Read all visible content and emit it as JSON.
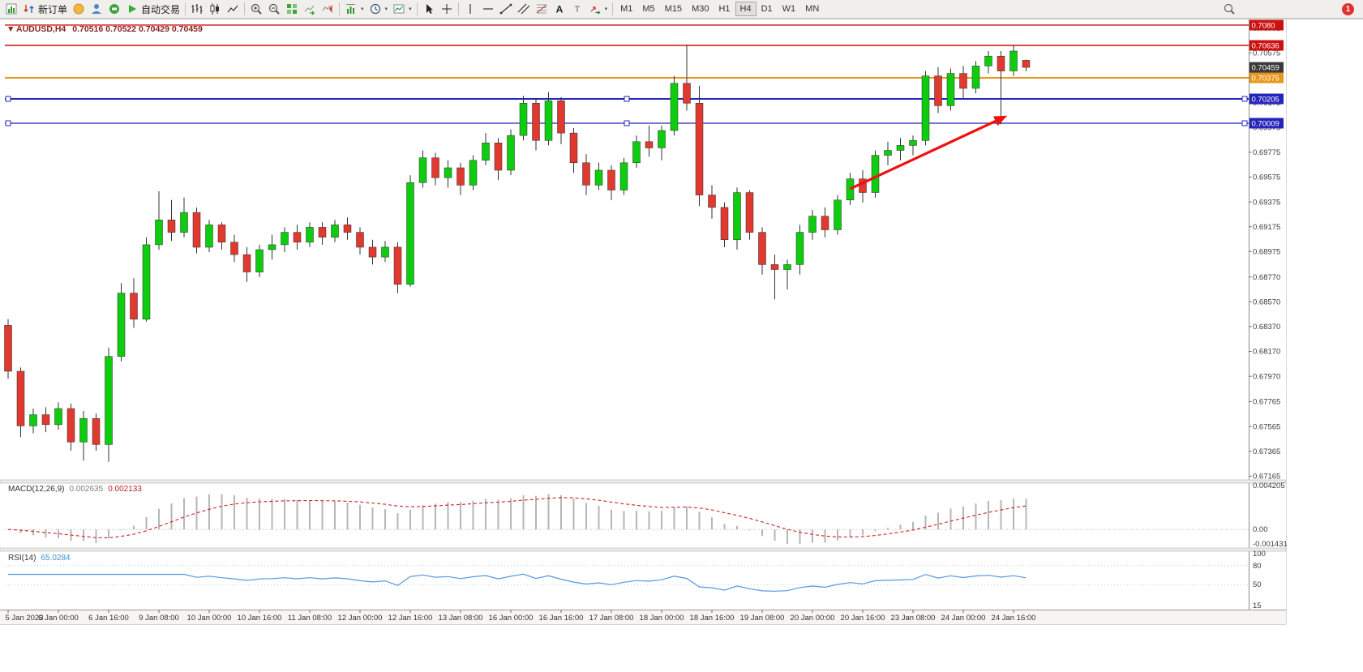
{
  "toolbar": {
    "buttons": [
      {
        "name": "new-chart"
      },
      {
        "name": "new-order",
        "label": "新订单"
      },
      {
        "name": "mql5-market"
      },
      {
        "name": "community"
      },
      {
        "name": "support"
      },
      {
        "name": "algo-trading",
        "label": "自动交易"
      },
      {
        "sep": true
      },
      {
        "name": "bar-chart"
      },
      {
        "name": "candlestick-chart"
      },
      {
        "name": "line-chart"
      },
      {
        "sep": true
      },
      {
        "name": "zoom-in"
      },
      {
        "name": "zoom-out"
      },
      {
        "name": "tile-windows"
      },
      {
        "name": "auto-scroll"
      },
      {
        "name": "chart-shift"
      },
      {
        "sep": true
      },
      {
        "name": "new-chart-dropdown",
        "dropdown": true
      },
      {
        "name": "periods-dropdown",
        "dropdown": true
      },
      {
        "name": "templates-dropdown",
        "dropdown": true
      },
      {
        "sep": true
      },
      {
        "name": "cursor"
      },
      {
        "name": "crosshair"
      },
      {
        "sep": true
      },
      {
        "name": "vertical-line"
      },
      {
        "name": "horizontal-line"
      },
      {
        "name": "trendline"
      },
      {
        "name": "equidistant-channel"
      },
      {
        "name": "fibonacci"
      },
      {
        "name": "text"
      },
      {
        "name": "text-label"
      },
      {
        "name": "arrows-dropdown",
        "dropdown": true
      },
      {
        "sep": true
      }
    ],
    "timeframes": [
      "M1",
      "M5",
      "M15",
      "M30",
      "H1",
      "H4",
      "D1",
      "W1",
      "MN"
    ],
    "active_timeframe": "H4",
    "notification_count": "1"
  },
  "chart": {
    "collapse_icon": "▼",
    "title_symbol": "AUDUSD,H4",
    "title_ohlc": "0.70516 0.70522 0.70429 0.70459",
    "horizontal_lines": [
      {
        "price": 0.708,
        "label": "0.7080",
        "color": "#cc1111",
        "width": 1.4,
        "selected": false
      },
      {
        "price": 0.70636,
        "label": "0.70636",
        "color": "#cc1111",
        "width": 1.4,
        "selected": false
      },
      {
        "price": 0.70375,
        "label": "0.70375",
        "color": "#e8971e",
        "width": 2,
        "selected": false
      },
      {
        "price": 0.70205,
        "label": "0.70205",
        "color": "#2525bb",
        "width": 2,
        "selected": true
      },
      {
        "price": 0.70009,
        "label": "0.70009",
        "color": "#2525bb",
        "width": 1.2,
        "selected": true
      }
    ],
    "current_price_label": {
      "text": "0.70459",
      "price": 0.70459,
      "color": "#3a3a3a"
    },
    "arrow_annotation": {
      "from": {
        "index": 67,
        "price": 0.6948
      },
      "to": {
        "index": 79.5,
        "price": 0.7007
      },
      "color": "#ee1111"
    }
  },
  "price_axis": {
    "ticks": [
      "0.70775",
      "0.70575",
      "0.70375",
      "0.70175",
      "0.69975",
      "0.69775",
      "0.69575",
      "0.69375",
      "0.69175",
      "0.68975",
      "0.68770",
      "0.68570",
      "0.68370",
      "0.68170",
      "0.67970",
      "0.67765",
      "0.67565",
      "0.67365",
      "0.67165"
    ]
  },
  "time_axis": {
    "candles_per_label": 4,
    "labels": [
      "5 Jan 2023",
      "6 Jan 00:00",
      "6 Jan 16:00",
      "9 Jan 08:00",
      "10 Jan 00:00",
      "10 Jan 16:00",
      "11 Jan 08:00",
      "12 Jan 00:00",
      "12 Jan 16:00",
      "13 Jan 08:00",
      "16 Jan 00:00",
      "16 Jan 16:00",
      "17 Jan 08:00",
      "18 Jan 00:00",
      "18 Jan 16:00",
      "19 Jan 08:00",
      "20 Jan 00:00",
      "20 Jan 16:00",
      "23 Jan 08:00",
      "24 Jan 00:00",
      "24 Jan 16:00"
    ]
  },
  "chart_data": {
    "type": "candlestick",
    "symbol": "AUDUSD",
    "timeframe": "H4",
    "price_range": [
      0.67135,
      0.70845
    ],
    "colors": {
      "bull": "#0ecc0e",
      "bear": "#e03a30",
      "wick": "#333333"
    },
    "candles": [
      [
        0.6838,
        0.6843,
        0.6795,
        0.6801
      ],
      [
        0.6801,
        0.6804,
        0.6748,
        0.6757
      ],
      [
        0.6757,
        0.6771,
        0.6751,
        0.6766
      ],
      [
        0.6766,
        0.6772,
        0.6752,
        0.6758
      ],
      [
        0.6758,
        0.6776,
        0.6754,
        0.6771
      ],
      [
        0.6771,
        0.6775,
        0.6737,
        0.6744
      ],
      [
        0.6744,
        0.6769,
        0.6729,
        0.6763
      ],
      [
        0.6763,
        0.6767,
        0.6737,
        0.6742
      ],
      [
        0.6742,
        0.682,
        0.6728,
        0.6813
      ],
      [
        0.6813,
        0.6872,
        0.6809,
        0.6864
      ],
      [
        0.6864,
        0.6876,
        0.6836,
        0.6843
      ],
      [
        0.6843,
        0.6909,
        0.6841,
        0.6903
      ],
      [
        0.6903,
        0.6946,
        0.6899,
        0.6923
      ],
      [
        0.6923,
        0.6939,
        0.6906,
        0.6913
      ],
      [
        0.6913,
        0.6941,
        0.6909,
        0.6929
      ],
      [
        0.6929,
        0.6933,
        0.6896,
        0.6901
      ],
      [
        0.6901,
        0.6923,
        0.6897,
        0.6919
      ],
      [
        0.6919,
        0.6921,
        0.6899,
        0.6905
      ],
      [
        0.6905,
        0.6911,
        0.6889,
        0.6895
      ],
      [
        0.6895,
        0.6901,
        0.6873,
        0.6881
      ],
      [
        0.6881,
        0.6903,
        0.6877,
        0.6899
      ],
      [
        0.6899,
        0.6911,
        0.6891,
        0.6903
      ],
      [
        0.6903,
        0.6917,
        0.6897,
        0.6913
      ],
      [
        0.6913,
        0.6919,
        0.6899,
        0.6905
      ],
      [
        0.6905,
        0.6921,
        0.6901,
        0.6917
      ],
      [
        0.6917,
        0.6921,
        0.6903,
        0.6909
      ],
      [
        0.6909,
        0.6923,
        0.6905,
        0.6919
      ],
      [
        0.6919,
        0.6925,
        0.6907,
        0.6913
      ],
      [
        0.6913,
        0.6917,
        0.6895,
        0.6901
      ],
      [
        0.6901,
        0.6907,
        0.6887,
        0.6893
      ],
      [
        0.6893,
        0.6906,
        0.6889,
        0.6901
      ],
      [
        0.6901,
        0.6905,
        0.6864,
        0.6871
      ],
      [
        0.6871,
        0.6959,
        0.6869,
        0.6953
      ],
      [
        0.6953,
        0.6979,
        0.6949,
        0.6973
      ],
      [
        0.6973,
        0.6977,
        0.6951,
        0.6957
      ],
      [
        0.6957,
        0.6971,
        0.6949,
        0.6965
      ],
      [
        0.6965,
        0.6969,
        0.6943,
        0.6951
      ],
      [
        0.6951,
        0.6975,
        0.6947,
        0.6971
      ],
      [
        0.6971,
        0.6993,
        0.6967,
        0.6985
      ],
      [
        0.6985,
        0.6989,
        0.6955,
        0.6963
      ],
      [
        0.6963,
        0.6996,
        0.6959,
        0.6991
      ],
      [
        0.6991,
        0.7023,
        0.6987,
        0.7017
      ],
      [
        0.7017,
        0.7021,
        0.6979,
        0.6987
      ],
      [
        0.6987,
        0.7026,
        0.6983,
        0.7019
      ],
      [
        0.7019,
        0.7022,
        0.6984,
        0.6993
      ],
      [
        0.6993,
        0.6997,
        0.6961,
        0.6969
      ],
      [
        0.6969,
        0.6976,
        0.6943,
        0.6951
      ],
      [
        0.6951,
        0.6969,
        0.6947,
        0.6963
      ],
      [
        0.6963,
        0.6967,
        0.6939,
        0.6947
      ],
      [
        0.6947,
        0.6973,
        0.6943,
        0.6969
      ],
      [
        0.6969,
        0.6991,
        0.6965,
        0.6986
      ],
      [
        0.6986,
        0.6999,
        0.6974,
        0.6981
      ],
      [
        0.6981,
        0.6999,
        0.6971,
        0.6995
      ],
      [
        0.6995,
        0.7039,
        0.6991,
        0.7033
      ],
      [
        0.7033,
        0.7064,
        0.7011,
        0.7017
      ],
      [
        0.7017,
        0.7031,
        0.6934,
        0.6943
      ],
      [
        0.6943,
        0.6951,
        0.6924,
        0.6933
      ],
      [
        0.6933,
        0.6937,
        0.6901,
        0.6907
      ],
      [
        0.6907,
        0.6949,
        0.6899,
        0.6945
      ],
      [
        0.6945,
        0.6947,
        0.6907,
        0.6913
      ],
      [
        0.6913,
        0.6917,
        0.6879,
        0.6887
      ],
      [
        0.6887,
        0.6895,
        0.6859,
        0.6883
      ],
      [
        0.6883,
        0.6891,
        0.6867,
        0.6887
      ],
      [
        0.6887,
        0.6919,
        0.6879,
        0.6913
      ],
      [
        0.6913,
        0.6931,
        0.6907,
        0.6926
      ],
      [
        0.6926,
        0.6933,
        0.6909,
        0.6915
      ],
      [
        0.6915,
        0.6943,
        0.6911,
        0.6939
      ],
      [
        0.6939,
        0.6961,
        0.6935,
        0.6956
      ],
      [
        0.6956,
        0.6963,
        0.6937,
        0.6945
      ],
      [
        0.6945,
        0.6979,
        0.6941,
        0.6975
      ],
      [
        0.6975,
        0.6986,
        0.6967,
        0.6979
      ],
      [
        0.6979,
        0.6989,
        0.6971,
        0.6983
      ],
      [
        0.6983,
        0.6991,
        0.6975,
        0.6987
      ],
      [
        0.6987,
        0.7043,
        0.6983,
        0.7039
      ],
      [
        0.7039,
        0.7046,
        0.7009,
        0.7015
      ],
      [
        0.7015,
        0.7045,
        0.7011,
        0.7041
      ],
      [
        0.7041,
        0.7047,
        0.7021,
        0.7029
      ],
      [
        0.7029,
        0.7051,
        0.7025,
        0.7047
      ],
      [
        0.7047,
        0.7059,
        0.7041,
        0.7055
      ],
      [
        0.7055,
        0.7059,
        0.7,
        0.7043
      ],
      [
        0.7043,
        0.7064,
        0.7039,
        0.7059
      ],
      [
        0.70516,
        0.70522,
        0.70429,
        0.70459
      ]
    ]
  },
  "macd": {
    "name": "MACD(12,26,9)",
    "value_main": "0.002635",
    "value_signal": "0.002133",
    "params": {
      "fast": 12,
      "slow": 26,
      "signal": 9
    },
    "axis": [
      "0.004205",
      "0.00",
      "-0.001431"
    ],
    "range": [
      -0.001431,
      0.004205
    ],
    "colors": {
      "histogram": "#b6b6b6",
      "signal": "#cc2222"
    }
  },
  "rsi": {
    "name": "RSI(14)",
    "value": "65.0284",
    "period": 14,
    "axis": [
      "100",
      "80",
      "50",
      "15"
    ],
    "range": [
      15,
      100
    ],
    "levels": [
      80,
      50
    ],
    "color": "#5599dd"
  }
}
